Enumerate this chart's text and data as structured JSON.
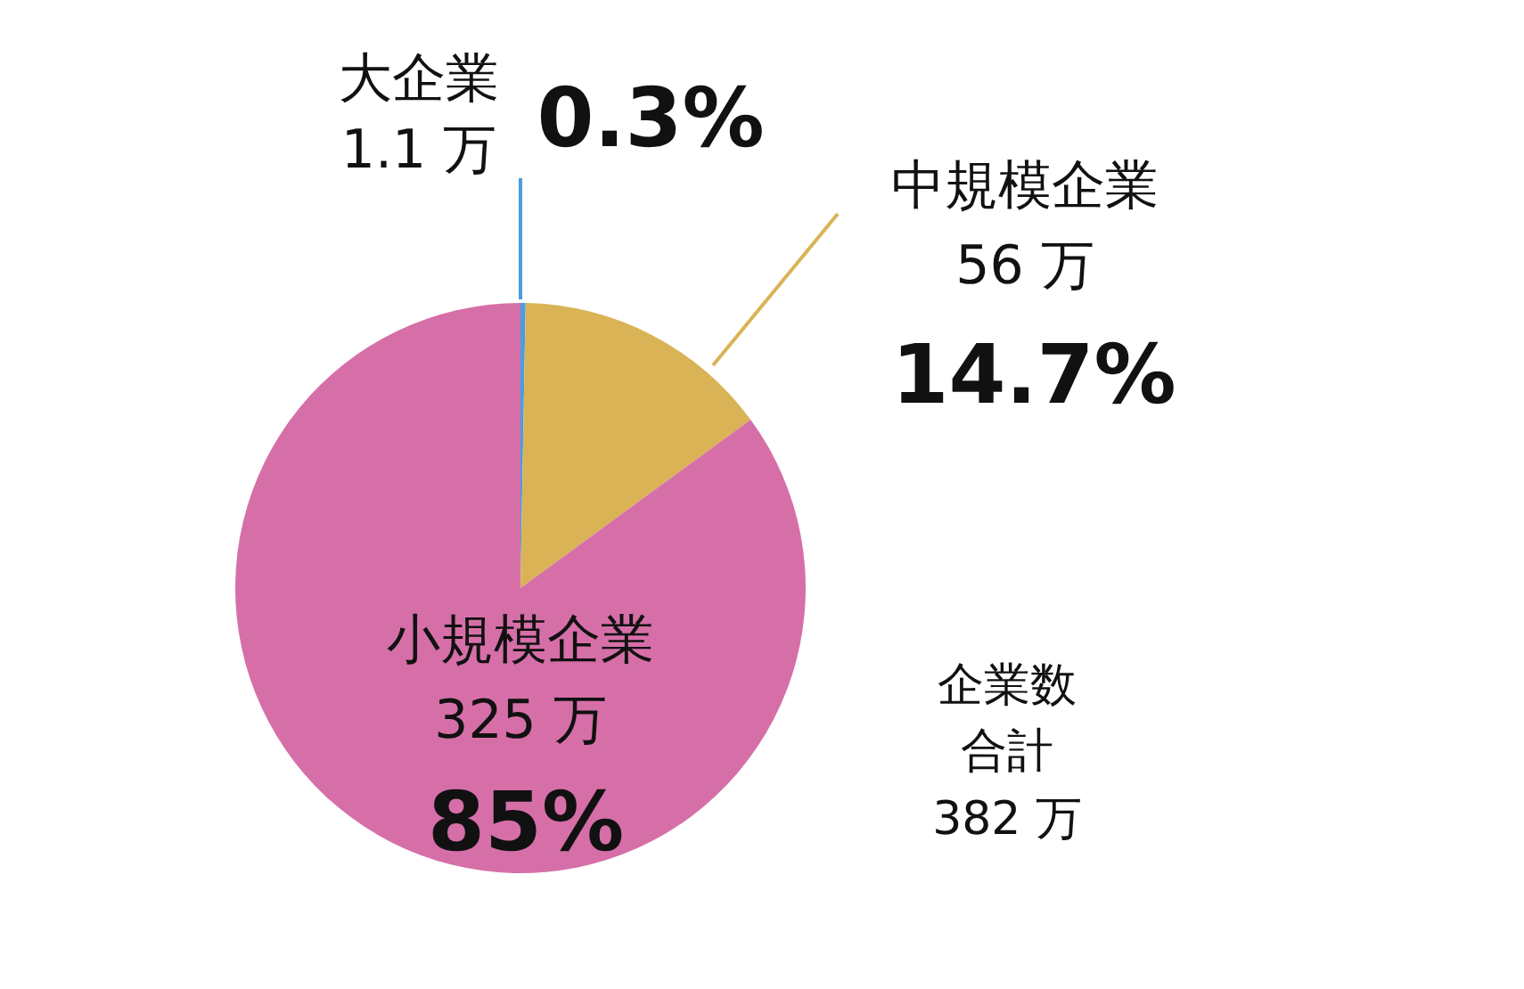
{
  "chart_data": {
    "type": "pie",
    "categories": [
      "大企業",
      "中規模企業",
      "小規模企業"
    ],
    "values": [
      1.1,
      56,
      325
    ],
    "colors": [
      "#4a9de0",
      "#d9b356",
      "#d66fa8"
    ],
    "value_labels": [
      "1.1 万",
      "56 万",
      "325 万"
    ],
    "annotations": [
      "0.3%",
      "14.7%",
      "85%",
      "企業数",
      "合計",
      "382 万"
    ]
  }
}
